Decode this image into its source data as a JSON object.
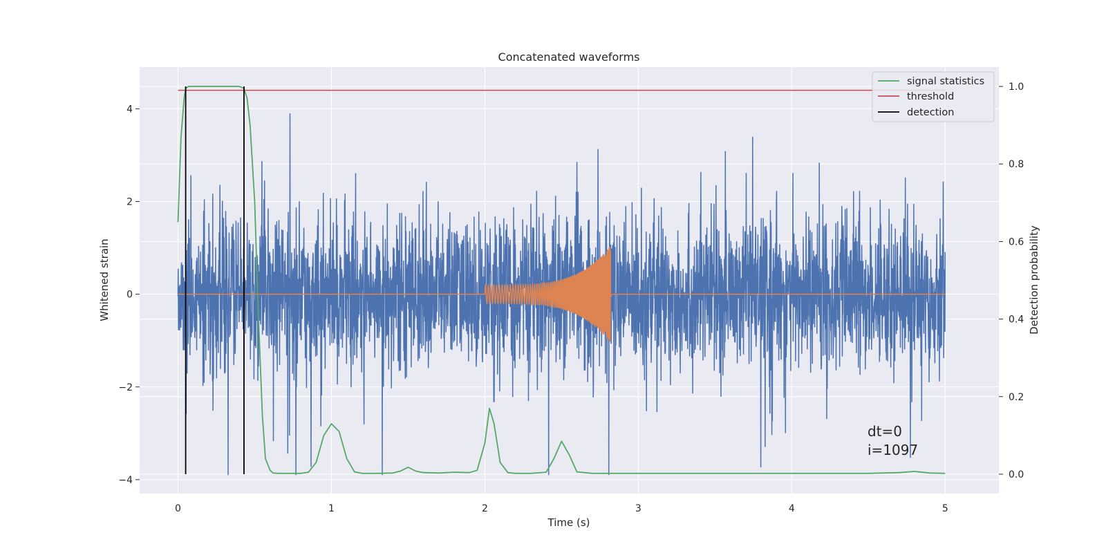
{
  "chart_data": {
    "type": "line",
    "title": "Concatenated waveforms",
    "xlabel": "Time (s)",
    "ylabel": "Whitened strain",
    "y2label": "Detection probability",
    "xlim": [
      -0.25,
      5.35
    ],
    "ylim": [
      -4.3,
      4.9
    ],
    "y2lim": [
      -0.05,
      1.05
    ],
    "x_ticks": [
      0,
      1,
      2,
      3,
      4,
      5
    ],
    "x_tick_labels": [
      "0",
      "1",
      "2",
      "3",
      "4",
      "5"
    ],
    "y_ticks": [
      -4,
      -2,
      0,
      2,
      4
    ],
    "y_tick_labels": [
      "−4",
      "−2",
      "0",
      "2",
      "4"
    ],
    "y2_ticks": [
      0.0,
      0.2,
      0.4,
      0.6,
      0.8,
      1.0
    ],
    "y2_tick_labels": [
      "0.0",
      "0.2",
      "0.4",
      "0.6",
      "0.8",
      "1.0"
    ],
    "grid": true,
    "legend_position": "top-right",
    "legend": [
      "signal statistics",
      "threshold",
      "detection"
    ],
    "annotations": [
      "dt=0",
      "i=1097"
    ],
    "colors": {
      "strain": "#4c72b0",
      "template": "#dd8452",
      "signal_statistics": "#55a868",
      "threshold": "#c44e52",
      "detection": "#000000",
      "plot_bg": "#eaeaf2",
      "grid": "#ffffff"
    },
    "series": [
      {
        "name": "signal statistics",
        "axis": "right",
        "x": [
          0.0,
          0.02,
          0.04,
          0.05,
          0.07,
          0.1,
          0.2,
          0.3,
          0.4,
          0.43,
          0.45,
          0.47,
          0.5,
          0.52,
          0.55,
          0.57,
          0.6,
          0.62,
          0.65,
          0.7,
          0.8,
          0.85,
          0.9,
          0.95,
          1.0,
          1.05,
          1.1,
          1.15,
          1.2,
          1.3,
          1.4,
          1.45,
          1.5,
          1.55,
          1.6,
          1.7,
          1.8,
          1.9,
          1.95,
          2.0,
          2.03,
          2.06,
          2.1,
          2.15,
          2.2,
          2.3,
          2.4,
          2.45,
          2.5,
          2.55,
          2.6,
          2.7,
          3.0,
          3.5,
          4.0,
          4.5,
          4.7,
          4.8,
          4.9,
          5.0
        ],
        "y": [
          0.65,
          0.87,
          0.97,
          0.995,
          1.0,
          1.0,
          1.0,
          1.0,
          1.0,
          0.995,
          0.97,
          0.9,
          0.7,
          0.45,
          0.15,
          0.04,
          0.01,
          0.003,
          0.002,
          0.002,
          0.002,
          0.005,
          0.03,
          0.1,
          0.13,
          0.11,
          0.04,
          0.006,
          0.002,
          0.002,
          0.003,
          0.008,
          0.018,
          0.008,
          0.004,
          0.003,
          0.005,
          0.004,
          0.01,
          0.08,
          0.17,
          0.13,
          0.03,
          0.004,
          0.002,
          0.002,
          0.005,
          0.04,
          0.085,
          0.05,
          0.006,
          0.002,
          0.002,
          0.002,
          0.002,
          0.002,
          0.004,
          0.007,
          0.003,
          0.002
        ]
      },
      {
        "name": "threshold",
        "axis": "right",
        "x": [
          0.0,
          5.0
        ],
        "y": [
          0.99,
          0.99
        ]
      },
      {
        "name": "detection",
        "axis": "right",
        "type": "vlines",
        "x": [
          0.05,
          0.43
        ],
        "ymin": 0.0,
        "ymax": 1.0
      },
      {
        "axis": "left",
        "role": "whitened strain noise",
        "x_range": [
          0.0,
          5.0
        ],
        "typical_amplitude": 1.1,
        "peak_range": [
          -3.9,
          3.9
        ]
      },
      {
        "axis": "left",
        "role": "injected waveform",
        "x_range": [
          0.0,
          5.0
        ],
        "chirp_start": 2.0,
        "chirp_end": 2.82,
        "amplitude_start": 0.2,
        "amplitude_peak": 1.05
      }
    ]
  }
}
